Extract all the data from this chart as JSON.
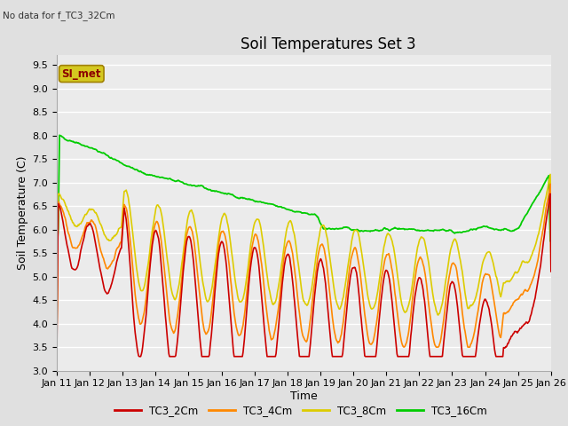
{
  "title": "Soil Temperatures Set 3",
  "xlabel": "Time",
  "ylabel": "Soil Temperature (C)",
  "no_data_text": "No data for f_TC3_32Cm",
  "si_met_label": "SI_met",
  "ylim": [
    3.0,
    9.7
  ],
  "x_tick_labels": [
    "Jan 11",
    "Jan 12",
    "Jan 13",
    "Jan 14",
    "Jan 15",
    "Jan 16",
    "Jan 17",
    "Jan 18",
    "Jan 19",
    "Jan 20",
    "Jan 21",
    "Jan 22",
    "Jan 23",
    "Jan 24",
    "Jan 25",
    "Jan 26"
  ],
  "legend_labels": [
    "TC3_2Cm",
    "TC3_4Cm",
    "TC3_8Cm",
    "TC3_16Cm"
  ],
  "colors": {
    "TC3_2Cm": "#cc0000",
    "TC3_4Cm": "#ff8800",
    "TC3_8Cm": "#ddcc00",
    "TC3_16Cm": "#00cc00"
  },
  "background_color": "#e0e0e0",
  "plot_bg_color": "#ebebeb",
  "title_fontsize": 12,
  "axis_label_fontsize": 9,
  "tick_fontsize": 8
}
